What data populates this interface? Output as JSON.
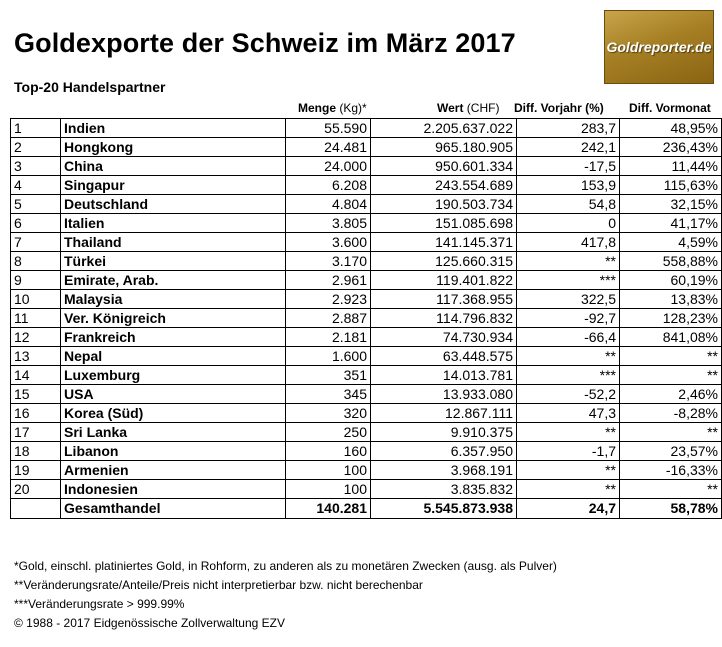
{
  "title": "Goldexporte der Schweiz im März 2017",
  "logo_text": "Goldreporter.de",
  "subtitle": "Top-20 Handelspartner",
  "columns": {
    "menge": "Menge",
    "menge_unit": "(Kg)*",
    "wert": "Wert",
    "wert_unit": "(CHF)",
    "vorjahr": "Diff. Vorjahr (%)",
    "vormonat": "Diff. Vormonat"
  },
  "rows": [
    {
      "rank": "1",
      "country": "Indien",
      "menge": "55.590",
      "wert": "2.205.637.022",
      "vorjahr": "283,7",
      "vormonat": "48,95%"
    },
    {
      "rank": "2",
      "country": "Hongkong",
      "menge": "24.481",
      "wert": "965.180.905",
      "vorjahr": "242,1",
      "vormonat": "236,43%"
    },
    {
      "rank": "3",
      "country": "China",
      "menge": "24.000",
      "wert": "950.601.334",
      "vorjahr": "-17,5",
      "vormonat": "11,44%"
    },
    {
      "rank": "4",
      "country": "Singapur",
      "menge": "6.208",
      "wert": "243.554.689",
      "vorjahr": "153,9",
      "vormonat": "115,63%"
    },
    {
      "rank": "5",
      "country": "Deutschland",
      "menge": "4.804",
      "wert": "190.503.734",
      "vorjahr": "54,8",
      "vormonat": "32,15%"
    },
    {
      "rank": "6",
      "country": "Italien",
      "menge": "3.805",
      "wert": "151.085.698",
      "vorjahr": "0",
      "vormonat": "41,17%"
    },
    {
      "rank": "7",
      "country": "Thailand",
      "menge": "3.600",
      "wert": "141.145.371",
      "vorjahr": "417,8",
      "vormonat": "4,59%"
    },
    {
      "rank": "8",
      "country": "Türkei",
      "menge": "3.170",
      "wert": "125.660.315",
      "vorjahr": "**",
      "vormonat": "558,88%"
    },
    {
      "rank": "9",
      "country": "Emirate, Arab.",
      "menge": "2.961",
      "wert": "119.401.822",
      "vorjahr": "***",
      "vormonat": "60,19%"
    },
    {
      "rank": "10",
      "country": "Malaysia",
      "menge": "2.923",
      "wert": "117.368.955",
      "vorjahr": "322,5",
      "vormonat": "13,83%"
    },
    {
      "rank": "11",
      "country": "Ver. Königreich",
      "menge": "2.887",
      "wert": "114.796.832",
      "vorjahr": "-92,7",
      "vormonat": "128,23%"
    },
    {
      "rank": "12",
      "country": "Frankreich",
      "menge": "2.181",
      "wert": "74.730.934",
      "vorjahr": "-66,4",
      "vormonat": "841,08%"
    },
    {
      "rank": "13",
      "country": "Nepal",
      "menge": "1.600",
      "wert": "63.448.575",
      "vorjahr": "**",
      "vormonat": "**"
    },
    {
      "rank": "14",
      "country": "Luxemburg",
      "menge": "351",
      "wert": "14.013.781",
      "vorjahr": "***",
      "vormonat": "**"
    },
    {
      "rank": "15",
      "country": "USA",
      "menge": "345",
      "wert": "13.933.080",
      "vorjahr": "-52,2",
      "vormonat": "2,46%"
    },
    {
      "rank": "16",
      "country": "Korea (Süd)",
      "menge": "320",
      "wert": "12.867.111",
      "vorjahr": "47,3",
      "vormonat": "-8,28%"
    },
    {
      "rank": "17",
      "country": "Sri Lanka",
      "menge": "250",
      "wert": "9.910.375",
      "vorjahr": "**",
      "vormonat": "**"
    },
    {
      "rank": "18",
      "country": "Libanon",
      "menge": "160",
      "wert": "6.357.950",
      "vorjahr": "-1,7",
      "vormonat": "23,57%"
    },
    {
      "rank": "19",
      "country": "Armenien",
      "menge": "100",
      "wert": "3.968.191",
      "vorjahr": "**",
      "vormonat": "-16,33%"
    },
    {
      "rank": "20",
      "country": "Indonesien",
      "menge": "100",
      "wert": "3.835.832",
      "vorjahr": "**",
      "vormonat": "**"
    }
  ],
  "total": {
    "label": "Gesamthandel",
    "menge": "140.281",
    "wert": "5.545.873.938",
    "vorjahr": "24,7",
    "vormonat": "58,78%"
  },
  "notes": [
    "*Gold, einschl. platiniertes Gold, in Rohform, zu anderen als zu monetären Zwecken (ausg. als Pulver)",
    "**Veränderungsrate/Anteile/Preis nicht interpretierbar bzw. nicht berechenbar",
    "***Veränderungsrate > 999.99%",
    "© 1988 - 2017 Eidgenössische Zollverwaltung EZV"
  ]
}
